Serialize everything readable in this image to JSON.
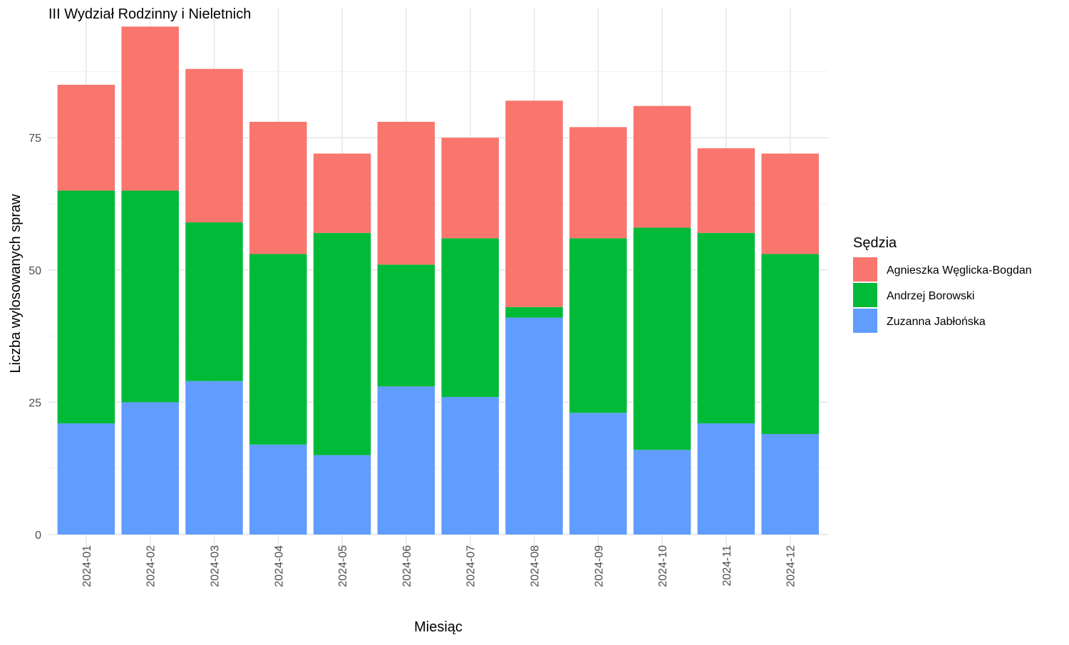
{
  "chart_data": {
    "type": "bar",
    "stacked": true,
    "title": "III Wydział Rodzinny i Nieletnich",
    "xlabel": "Miesiąc",
    "ylabel": "Liczba wylosowanych spraw",
    "ylim": [
      0,
      97
    ],
    "yticks": [
      0,
      25,
      50,
      75
    ],
    "grid": true,
    "legend_position": "right",
    "legend_title": "Sędzia",
    "categories": [
      "2024-01",
      "2024-02",
      "2024-03",
      "2024-04",
      "2024-05",
      "2024-06",
      "2024-07",
      "2024-08",
      "2024-09",
      "2024-10",
      "2024-11",
      "2024-12"
    ],
    "series": [
      {
        "name": "Zuzanna Jabłońska",
        "color": "#619CFF",
        "values": [
          21,
          25,
          29,
          17,
          15,
          28,
          26,
          41,
          23,
          16,
          21,
          19
        ]
      },
      {
        "name": "Andrzej Borowski",
        "color": "#00BA38",
        "values": [
          44,
          40,
          30,
          36,
          42,
          23,
          30,
          2,
          33,
          42,
          36,
          34
        ]
      },
      {
        "name": "Agnieszka Węglicka-Bogdan",
        "color": "#F8766D",
        "values": [
          20,
          31,
          29,
          25,
          15,
          27,
          19,
          39,
          21,
          23,
          16,
          19
        ]
      }
    ],
    "legend_order": [
      "Agnieszka Węglicka-Bogdan",
      "Andrzej Borowski",
      "Zuzanna Jabłońska"
    ]
  }
}
